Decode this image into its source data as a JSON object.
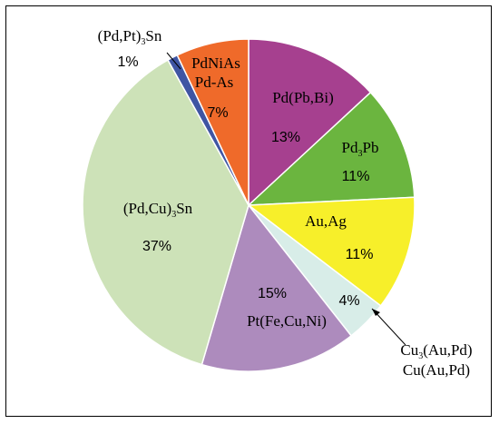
{
  "chart_data": {
    "type": "pie",
    "title": "",
    "slices": [
      {
        "label": "Pd(Pb,Bi)",
        "value_label": "13%",
        "value": 13,
        "color": "#a6408f"
      },
      {
        "label": "Pd3Pb",
        "value_label": "11%",
        "value": 11,
        "color": "#6bb53f"
      },
      {
        "label": "Au,Ag",
        "value_label": "11%",
        "value": 11,
        "color": "#f7ef2a"
      },
      {
        "label": "Cu3(Au,Pd) / Cu(Au,Pd)",
        "value_label": "4%",
        "value": 4,
        "color": "#d8ede8"
      },
      {
        "label": "Pt(Fe,Cu,Ni)",
        "value_label": "15%",
        "value": 15,
        "color": "#ad8bbd"
      },
      {
        "label": "(Pd,Cu)3Sn",
        "value_label": "37%",
        "value": 37,
        "color": "#cde2b8"
      },
      {
        "label": "(Pd,Pt)3Sn",
        "value_label": "1%",
        "value": 1,
        "color": "#3f55a3"
      },
      {
        "label": "PdNiAs / Pd-As",
        "value_label": "7%",
        "value": 7,
        "color": "#ef6a2a"
      }
    ]
  }
}
